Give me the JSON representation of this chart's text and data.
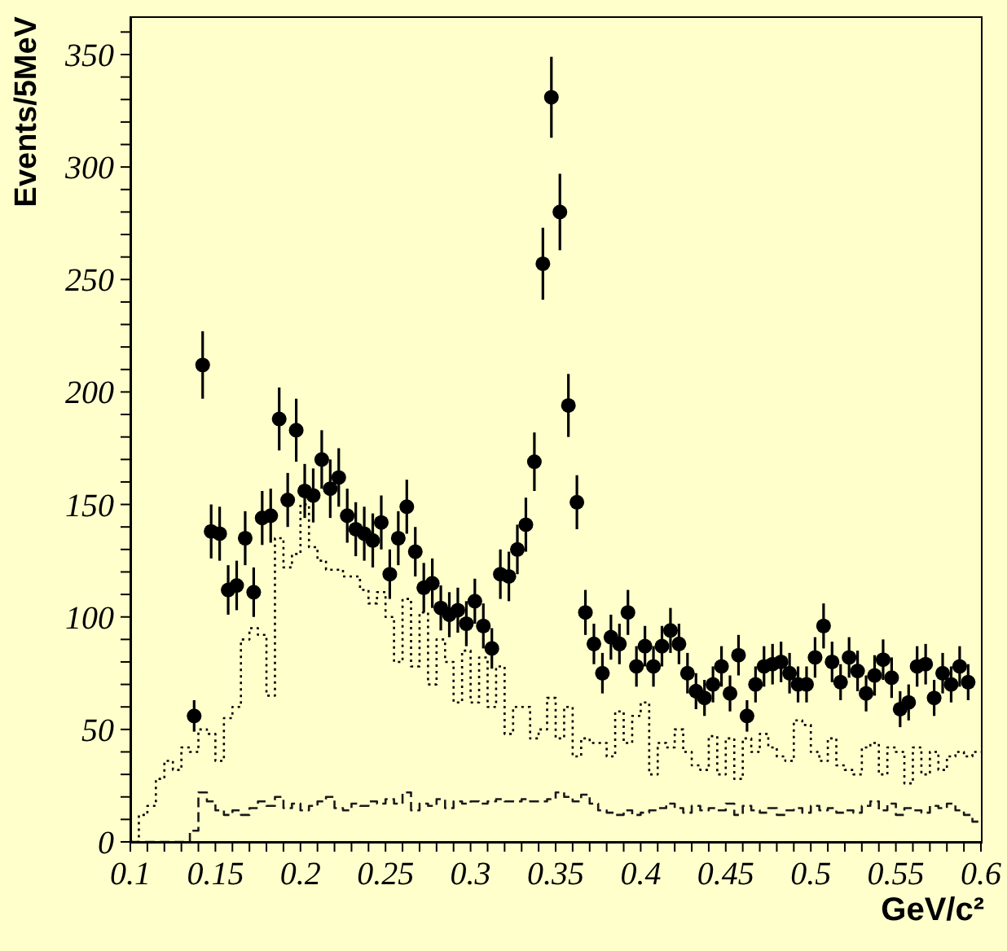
{
  "chart_data": {
    "type": "scatter",
    "xlabel": "GeV/c²",
    "ylabel": "Events/5MeV",
    "marker": "circle",
    "xlim": [
      0.1,
      0.6
    ],
    "xticks": [
      0.1,
      {
        "value": 0.11,
        "label": null
      },
      {
        "value": 0.12,
        "label": null
      },
      {
        "value": 0.13,
        "label": null
      },
      {
        "value": 0.14,
        "label": null
      },
      0.15,
      {
        "value": 0.16,
        "label": null
      },
      {
        "value": 0.17,
        "label": null
      },
      {
        "value": 0.18,
        "label": null
      },
      {
        "value": 0.19,
        "label": null
      },
      0.2,
      {
        "value": 0.21,
        "label": null
      },
      {
        "value": 0.22,
        "label": null
      },
      {
        "value": 0.23,
        "label": null
      },
      {
        "value": 0.24,
        "label": null
      },
      0.25,
      {
        "value": 0.26,
        "label": null
      },
      {
        "value": 0.27,
        "label": null
      },
      {
        "value": 0.28,
        "label": null
      },
      {
        "value": 0.29,
        "label": null
      },
      0.3,
      {
        "value": 0.31,
        "label": null
      },
      {
        "value": 0.32,
        "label": null
      },
      {
        "value": 0.33,
        "label": null
      },
      {
        "value": 0.34,
        "label": null
      },
      0.35,
      {
        "value": 0.36,
        "label": null
      },
      {
        "value": 0.37,
        "label": null
      },
      {
        "value": 0.38,
        "label": null
      },
      {
        "value": 0.39,
        "label": null
      },
      0.4,
      {
        "value": 0.41,
        "label": null
      },
      {
        "value": 0.42,
        "label": null
      },
      {
        "value": 0.43,
        "label": null
      },
      {
        "value": 0.44,
        "label": null
      },
      0.45,
      {
        "value": 0.46,
        "label": null
      },
      {
        "value": 0.47,
        "label": null
      },
      {
        "value": 0.48,
        "label": null
      },
      {
        "value": 0.49,
        "label": null
      },
      0.5,
      {
        "value": 0.51,
        "label": null
      },
      {
        "value": 0.52,
        "label": null
      },
      {
        "value": 0.53,
        "label": null
      },
      {
        "value": 0.54,
        "label": null
      },
      0.55,
      {
        "value": 0.56,
        "label": null
      },
      {
        "value": 0.57,
        "label": null
      },
      {
        "value": 0.58,
        "label": null
      },
      {
        "value": 0.59,
        "label": null
      },
      0.6
    ],
    "ylim": [
      0,
      367
    ],
    "yticks": [
      0,
      {
        "value": 10,
        "label": null
      },
      {
        "value": 20,
        "label": null
      },
      {
        "value": 30,
        "label": null
      },
      {
        "value": 40,
        "label": null
      },
      50,
      {
        "value": 60,
        "label": null
      },
      {
        "value": 70,
        "label": null
      },
      {
        "value": 80,
        "label": null
      },
      {
        "value": 90,
        "label": null
      },
      100,
      {
        "value": 110,
        "label": null
      },
      {
        "value": 120,
        "label": null
      },
      {
        "value": 130,
        "label": null
      },
      {
        "value": 140,
        "label": null
      },
      150,
      {
        "value": 160,
        "label": null
      },
      {
        "value": 170,
        "label": null
      },
      {
        "value": 180,
        "label": null
      },
      {
        "value": 190,
        "label": null
      },
      200,
      {
        "value": 210,
        "label": null
      },
      {
        "value": 220,
        "label": null
      },
      {
        "value": 230,
        "label": null
      },
      {
        "value": 240,
        "label": null
      },
      250,
      {
        "value": 260,
        "label": null
      },
      {
        "value": 270,
        "label": null
      },
      {
        "value": 280,
        "label": null
      },
      {
        "value": 290,
        "label": null
      },
      300,
      {
        "value": 310,
        "label": null
      },
      {
        "value": 320,
        "label": null
      },
      {
        "value": 330,
        "label": null
      },
      {
        "value": 340,
        "label": null
      },
      350,
      {
        "value": 360,
        "label": null
      }
    ],
    "bins": [
      0.1,
      0.105,
      0.11,
      0.115,
      0.12,
      0.125,
      0.13,
      0.135,
      0.14,
      0.145,
      0.15,
      0.155,
      0.16,
      0.165,
      0.17,
      0.175,
      0.18,
      0.185,
      0.19,
      0.195,
      0.2,
      0.205,
      0.21,
      0.215,
      0.22,
      0.225,
      0.23,
      0.235,
      0.24,
      0.245,
      0.25,
      0.255,
      0.26,
      0.265,
      0.27,
      0.275,
      0.28,
      0.285,
      0.29,
      0.295,
      0.3,
      0.305,
      0.31,
      0.315,
      0.32,
      0.325,
      0.33,
      0.335,
      0.34,
      0.345,
      0.35,
      0.355,
      0.36,
      0.365,
      0.37,
      0.375,
      0.38,
      0.385,
      0.39,
      0.395,
      0.4,
      0.405,
      0.41,
      0.415,
      0.42,
      0.425,
      0.43,
      0.435,
      0.44,
      0.445,
      0.45,
      0.455,
      0.46,
      0.465,
      0.47,
      0.475,
      0.48,
      0.485,
      0.49,
      0.495,
      0.5,
      0.505,
      0.51,
      0.515,
      0.52,
      0.525,
      0.53,
      0.535,
      0.54,
      0.545,
      0.55,
      0.555,
      0.56,
      0.565,
      0.57,
      0.575,
      0.58,
      0.585,
      0.59,
      0.595,
      0.6
    ],
    "series": [
      {
        "type": "histogram",
        "color": "#000000",
        "line_style": "dotted",
        "values": [
          0,
          12,
          16,
          28,
          36,
          32,
          42,
          40,
          50,
          48,
          36,
          55,
          60,
          90,
          95,
          92,
          65,
          135,
          122,
          128,
          150,
          131,
          125,
          121,
          121,
          118,
          118,
          112,
          106,
          111,
          100,
          80,
          108,
          78,
          102,
          70,
          90,
          80,
          62,
          85,
          62,
          82,
          60,
          78,
          48,
          60,
          60,
          46,
          50,
          64,
          46,
          60,
          38,
          46,
          44,
          44,
          38,
          58,
          44,
          56,
          62,
          30,
          44,
          42,
          50,
          40,
          34,
          32,
          47,
          30,
          46,
          28,
          46,
          40,
          48,
          42,
          38,
          36,
          54,
          52,
          40,
          36,
          46,
          34,
          32,
          30,
          42,
          44,
          30,
          42,
          40,
          26,
          42,
          30,
          40,
          32,
          38,
          40,
          38,
          40
        ]
      },
      {
        "type": "histogram",
        "color": "#1a1a1a",
        "line_style": "dashed",
        "values": [
          0,
          0,
          0,
          0,
          0,
          0,
          0,
          5,
          22,
          18,
          14,
          12,
          14,
          12,
          15,
          18,
          16,
          20,
          15,
          17,
          14,
          16,
          18,
          20,
          15,
          14,
          17,
          16,
          18,
          17,
          19,
          17,
          22,
          14,
          17,
          16,
          19,
          15,
          18,
          17,
          18,
          17,
          18,
          19,
          18,
          18,
          19,
          18,
          18,
          19,
          22,
          20,
          18,
          21,
          17,
          14,
          13,
          12,
          14,
          12,
          13,
          14,
          15,
          17,
          15,
          13,
          16,
          14,
          15,
          14,
          17,
          12,
          16,
          14,
          13,
          15,
          12,
          14,
          15,
          13,
          16,
          14,
          15,
          13,
          14,
          13,
          16,
          18,
          14,
          17,
          12,
          15,
          14,
          13,
          16,
          15,
          17,
          14,
          12,
          9
        ]
      },
      {
        "color": "#000000",
        "x": [
          0.1375,
          0.1425,
          0.1475,
          0.1525,
          0.1575,
          0.1625,
          0.1675,
          0.1725,
          0.1775,
          0.1825,
          0.1875,
          0.1925,
          0.1975,
          0.2025,
          0.2075,
          0.2125,
          0.2175,
          0.2225,
          0.2275,
          0.2325,
          0.2375,
          0.2425,
          0.2475,
          0.2525,
          0.2575,
          0.2625,
          0.2675,
          0.2725,
          0.2775,
          0.2825,
          0.2875,
          0.2925,
          0.2975,
          0.3025,
          0.3075,
          0.3125,
          0.3175,
          0.3225,
          0.3275,
          0.3325,
          0.3375,
          0.3425,
          0.3475,
          0.3525,
          0.3575,
          0.3625,
          0.3675,
          0.3725,
          0.3775,
          0.3825,
          0.3875,
          0.3925,
          0.3975,
          0.4025,
          0.4075,
          0.4125,
          0.4175,
          0.4225,
          0.4275,
          0.4325,
          0.4375,
          0.4425,
          0.4475,
          0.4525,
          0.4575,
          0.4625,
          0.4675,
          0.4725,
          0.4775,
          0.4825,
          0.4875,
          0.4925,
          0.4975,
          0.5025,
          0.5075,
          0.5125,
          0.5175,
          0.5225,
          0.5275,
          0.5325,
          0.5375,
          0.5425,
          0.5475,
          0.5525,
          0.5575,
          0.5625,
          0.5675,
          0.5725,
          0.5775,
          0.5825,
          0.5875,
          0.5925
        ],
        "values": [
          56,
          212,
          138,
          137,
          112,
          114,
          135,
          111,
          144,
          145,
          188,
          152,
          183,
          156,
          154,
          170,
          157,
          162,
          145,
          139,
          137,
          134,
          142,
          119,
          135,
          149,
          129,
          113,
          115,
          104,
          101,
          103,
          97,
          107,
          96,
          86,
          119,
          118,
          130,
          141,
          169,
          257,
          331,
          280,
          194,
          151,
          102,
          88,
          75,
          91,
          88,
          102,
          78,
          87,
          78,
          87,
          94,
          88,
          75,
          67,
          64,
          70,
          78,
          66,
          83,
          56,
          70,
          78,
          79,
          80,
          75,
          70,
          70,
          82,
          96,
          80,
          71,
          82,
          76,
          66,
          74,
          81,
          73,
          59,
          62,
          78,
          79,
          64,
          75,
          70,
          78,
          71
        ],
        "errors": [
          7,
          15,
          12,
          12,
          11,
          11,
          12,
          11,
          12,
          12,
          14,
          12,
          14,
          12,
          12,
          13,
          13,
          13,
          12,
          12,
          12,
          12,
          12,
          11,
          12,
          12,
          11,
          11,
          11,
          10,
          10,
          10,
          10,
          10,
          10,
          9,
          11,
          11,
          11,
          12,
          13,
          16,
          18,
          17,
          14,
          12,
          10,
          9,
          9,
          10,
          9,
          10,
          9,
          9,
          9,
          9,
          10,
          9,
          9,
          8,
          8,
          8,
          9,
          8,
          9,
          7,
          8,
          9,
          9,
          9,
          9,
          8,
          8,
          9,
          10,
          9,
          8,
          9,
          9,
          8,
          9,
          9,
          9,
          8,
          8,
          9,
          9,
          8,
          9,
          8,
          9,
          8
        ]
      }
    ]
  }
}
